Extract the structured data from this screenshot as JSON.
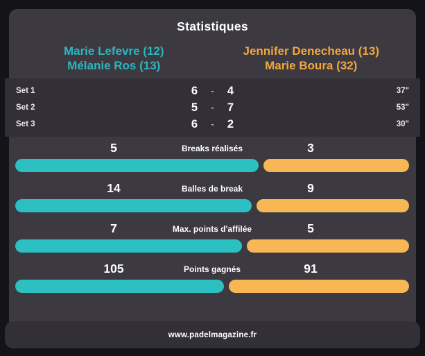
{
  "title": "Statistiques",
  "teams": {
    "left": {
      "line1": "Marie Lefevre (12)",
      "line2": "Mélanie Ros (13)"
    },
    "right": {
      "line1": "Jennifer Denecheau (13)",
      "line2": "Marie Boura (32)"
    }
  },
  "sets": {
    "separator": "-",
    "rows": [
      {
        "label": "Set 1",
        "left": "6",
        "right": "4",
        "duration": "37\""
      },
      {
        "label": "Set 2",
        "left": "5",
        "right": "7",
        "duration": "53\""
      },
      {
        "label": "Set 3",
        "left": "6",
        "right": "2",
        "duration": "30\""
      }
    ]
  },
  "chart_data": {
    "type": "bar",
    "orientation": "horizontal-paired",
    "title": "Statistiques",
    "categories": [
      "Breaks réalisés",
      "Balles de break",
      "Max. points d'affilée",
      "Points gagnés"
    ],
    "series": [
      {
        "name": "Marie Lefevre (12) / Mélanie Ros (13)",
        "color": "#2cc0c2",
        "values": [
          5,
          14,
          7,
          105
        ]
      },
      {
        "name": "Jennifer Denecheau (13) / Marie Boura (32)",
        "color": "#f8b755",
        "values": [
          3,
          9,
          5,
          91
        ]
      }
    ],
    "legend_position": "top",
    "bar_scale": "each row: left width / (left+right) of full track",
    "set_scores": [
      {
        "set": "Set 1",
        "score": "6-4",
        "duration": "37\""
      },
      {
        "set": "Set 2",
        "score": "5-7",
        "duration": "53\""
      },
      {
        "set": "Set 3",
        "score": "6-2",
        "duration": "30\""
      }
    ]
  },
  "footer": {
    "url": "www.padelmagazine.fr"
  },
  "colors": {
    "background": "#141317",
    "panel": "#3c3941",
    "band": "#322f37",
    "teal": "#2bb7bf",
    "orange": "#f2a63e",
    "teal_bar": "#2cc0c2",
    "orange_bar": "#f8b755"
  }
}
